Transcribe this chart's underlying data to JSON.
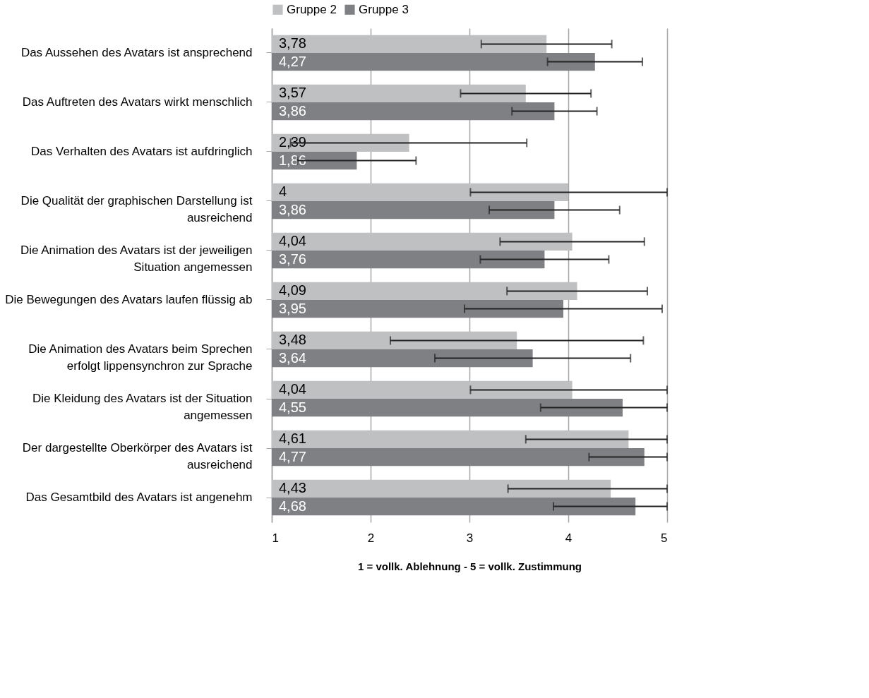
{
  "chart_data": {
    "type": "bar",
    "orientation": "horizontal",
    "categories": [
      "Das Aussehen des Avatars ist ansprechend",
      "Das Auftreten des Avatars wirkt menschlich",
      "Das Verhalten des Avatars ist aufdringlich",
      "Die Qualität der graphischen Darstellung ist ausreichend",
      "Die Animation des Avatars ist der jeweiligen Situation angemessen",
      "Die Bewegungen des Avatars laufen flüssig ab",
      "Die Animation des Avatars beim Sprechen erfolgt lippensynchron zur Sprache",
      "Die Kleidung des Avatars ist der Situation angemessen",
      "Der dargestellte Oberkörper des Avatars ist ausreichend",
      "Das Gesamtbild des Avatars ist angenehm"
    ],
    "series": [
      {
        "name": "Gruppe 2",
        "color": "#bfc0c2",
        "values": [
          3.78,
          3.57,
          2.39,
          4,
          4.04,
          4.09,
          3.48,
          4.04,
          4.61,
          4.43
        ],
        "value_labels": [
          "3,78",
          "3,57",
          "2,39",
          "4",
          "4,04",
          "4,09",
          "3,48",
          "4,04",
          "4,61",
          "4,43"
        ],
        "errors": [
          [
            3.12,
            4.44
          ],
          [
            2.91,
            4.23
          ],
          [
            1.19,
            3.58
          ],
          [
            3.01,
            5
          ],
          [
            3.31,
            4.77
          ],
          [
            3.38,
            4.8
          ],
          [
            2.2,
            4.76
          ],
          [
            3.01,
            5
          ],
          [
            3.57,
            5
          ],
          [
            3.39,
            5
          ]
        ]
      },
      {
        "name": "Gruppe 3",
        "color": "#7f8083",
        "values": [
          4.27,
          3.86,
          1.86,
          3.86,
          3.76,
          3.95,
          3.64,
          4.55,
          4.77,
          4.68
        ],
        "value_labels": [
          "4,27",
          "3,86",
          "1,86",
          "3,86",
          "3,76",
          "3,95",
          "3,64",
          "4,55",
          "4,77",
          "4,68"
        ],
        "errors": [
          [
            3.79,
            4.75
          ],
          [
            3.43,
            4.29
          ],
          [
            1.26,
            2.46
          ],
          [
            3.2,
            4.52
          ],
          [
            3.11,
            4.41
          ],
          [
            2.95,
            4.95
          ],
          [
            2.65,
            4.63
          ],
          [
            3.72,
            5
          ],
          [
            4.21,
            5
          ],
          [
            3.85,
            5
          ]
        ]
      }
    ],
    "xlim": [
      1,
      5
    ],
    "xticks": [
      1,
      2,
      3,
      4,
      5
    ],
    "xlabel": "1 = vollk. Ablehnung - 5 = vollk. Zustimmung",
    "grid": "x",
    "legend": "top"
  }
}
